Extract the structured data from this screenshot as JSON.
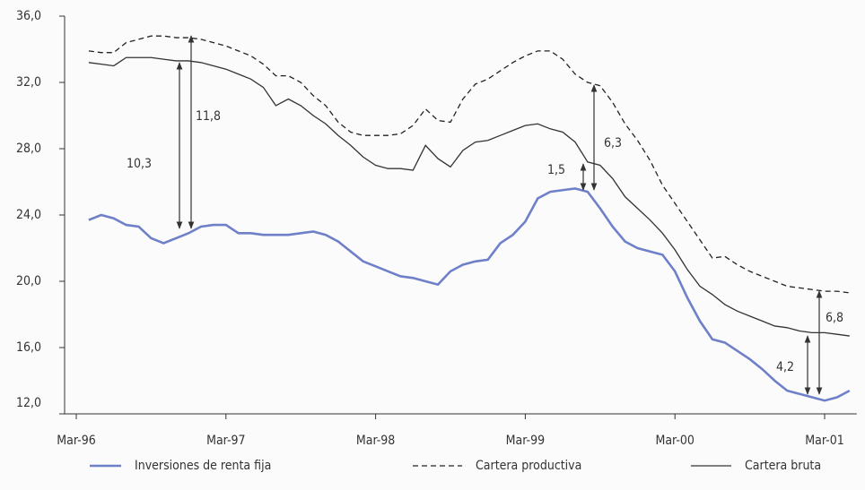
{
  "chart_data": {
    "type": "line",
    "categories": [
      "Mar-96",
      null,
      null,
      null,
      null,
      null,
      null,
      null,
      null,
      null,
      null,
      null,
      "Mar-97",
      null,
      null,
      null,
      null,
      null,
      null,
      null,
      null,
      null,
      null,
      null,
      "Mar-98",
      null,
      null,
      null,
      null,
      null,
      null,
      null,
      null,
      null,
      null,
      null,
      "Mar-99",
      null,
      null,
      null,
      null,
      null,
      null,
      null,
      null,
      null,
      null,
      null,
      "Mar-00",
      null,
      null,
      null,
      null,
      null,
      null,
      null,
      null,
      null,
      null,
      null,
      "Mar-01",
      null,
      null
    ],
    "ylim": [
      12,
      36
    ],
    "yticks": [
      {
        "value": 36,
        "label": "36,0"
      },
      {
        "value": 32,
        "label": "32,0"
      },
      {
        "value": 28,
        "label": "28,0"
      },
      {
        "value": 24,
        "label": "24,0"
      },
      {
        "value": 20,
        "label": "20,0"
      },
      {
        "value": 16,
        "label": "16,0"
      },
      {
        "value": 12,
        "label": "12,0"
      }
    ],
    "grid": false,
    "series": [
      {
        "name": "Inversiones de renta fija",
        "color": "#6f80c9",
        "dashed": false,
        "values": [
          null,
          23.7,
          24.0,
          23.8,
          23.4,
          23.3,
          22.6,
          22.3,
          22.6,
          22.9,
          23.3,
          23.4,
          23.4,
          22.9,
          22.9,
          22.8,
          22.8,
          22.8,
          22.9,
          23.0,
          22.8,
          22.4,
          21.8,
          21.2,
          20.9,
          20.6,
          20.3,
          20.2,
          20.0,
          19.8,
          20.6,
          21.0,
          21.2,
          21.3,
          22.3,
          22.8,
          23.6,
          25.0,
          25.4,
          25.5,
          25.6,
          25.4,
          24.4,
          23.3,
          22.4,
          22.0,
          21.8,
          21.6,
          20.6,
          19.0,
          17.6,
          16.5,
          16.3,
          15.8,
          15.3,
          14.7,
          14.0,
          13.4,
          13.2,
          13.0,
          12.8,
          13.0,
          13.4
        ]
      },
      {
        "name": "Cartera productiva",
        "color": "#222222",
        "dashed": true,
        "values": [
          null,
          33.9,
          33.8,
          33.8,
          34.4,
          34.6,
          34.8,
          34.8,
          34.7,
          34.7,
          34.6,
          34.4,
          34.2,
          33.9,
          33.6,
          33.1,
          32.4,
          32.4,
          32.0,
          31.2,
          30.6,
          29.6,
          29.0,
          28.8,
          28.8,
          28.8,
          28.9,
          29.4,
          30.4,
          29.7,
          29.6,
          31.0,
          31.9,
          32.2,
          32.7,
          33.2,
          33.6,
          33.9,
          33.9,
          33.4,
          32.5,
          32.0,
          31.8,
          30.8,
          29.5,
          28.5,
          27.3,
          25.8,
          24.7,
          23.6,
          22.5,
          21.4,
          21.5,
          21.0,
          20.6,
          20.3,
          20.0,
          19.7,
          19.6,
          19.5,
          19.4,
          19.4,
          19.3
        ]
      },
      {
        "name": "Cartera bruta",
        "color": "#333333",
        "dashed": false,
        "values": [
          null,
          33.2,
          33.1,
          33.0,
          33.5,
          33.5,
          33.5,
          33.4,
          33.3,
          33.3,
          33.2,
          33.0,
          32.8,
          32.5,
          32.2,
          31.7,
          30.6,
          31.0,
          30.6,
          30.0,
          29.5,
          28.8,
          28.2,
          27.5,
          27.0,
          26.8,
          26.8,
          26.7,
          28.2,
          27.4,
          26.9,
          27.9,
          28.4,
          28.5,
          28.8,
          29.1,
          29.4,
          29.5,
          29.2,
          29.0,
          28.4,
          27.2,
          27.0,
          26.2,
          25.1,
          24.4,
          23.7,
          22.9,
          21.9,
          20.7,
          19.7,
          19.2,
          18.6,
          18.2,
          17.9,
          17.6,
          17.3,
          17.2,
          17.0,
          16.9,
          16.9,
          16.8,
          16.7
        ]
      }
    ],
    "annotations": [
      "10,3",
      "11,8",
      "1,5",
      "6,3",
      "4,2",
      "6,8"
    ]
  }
}
